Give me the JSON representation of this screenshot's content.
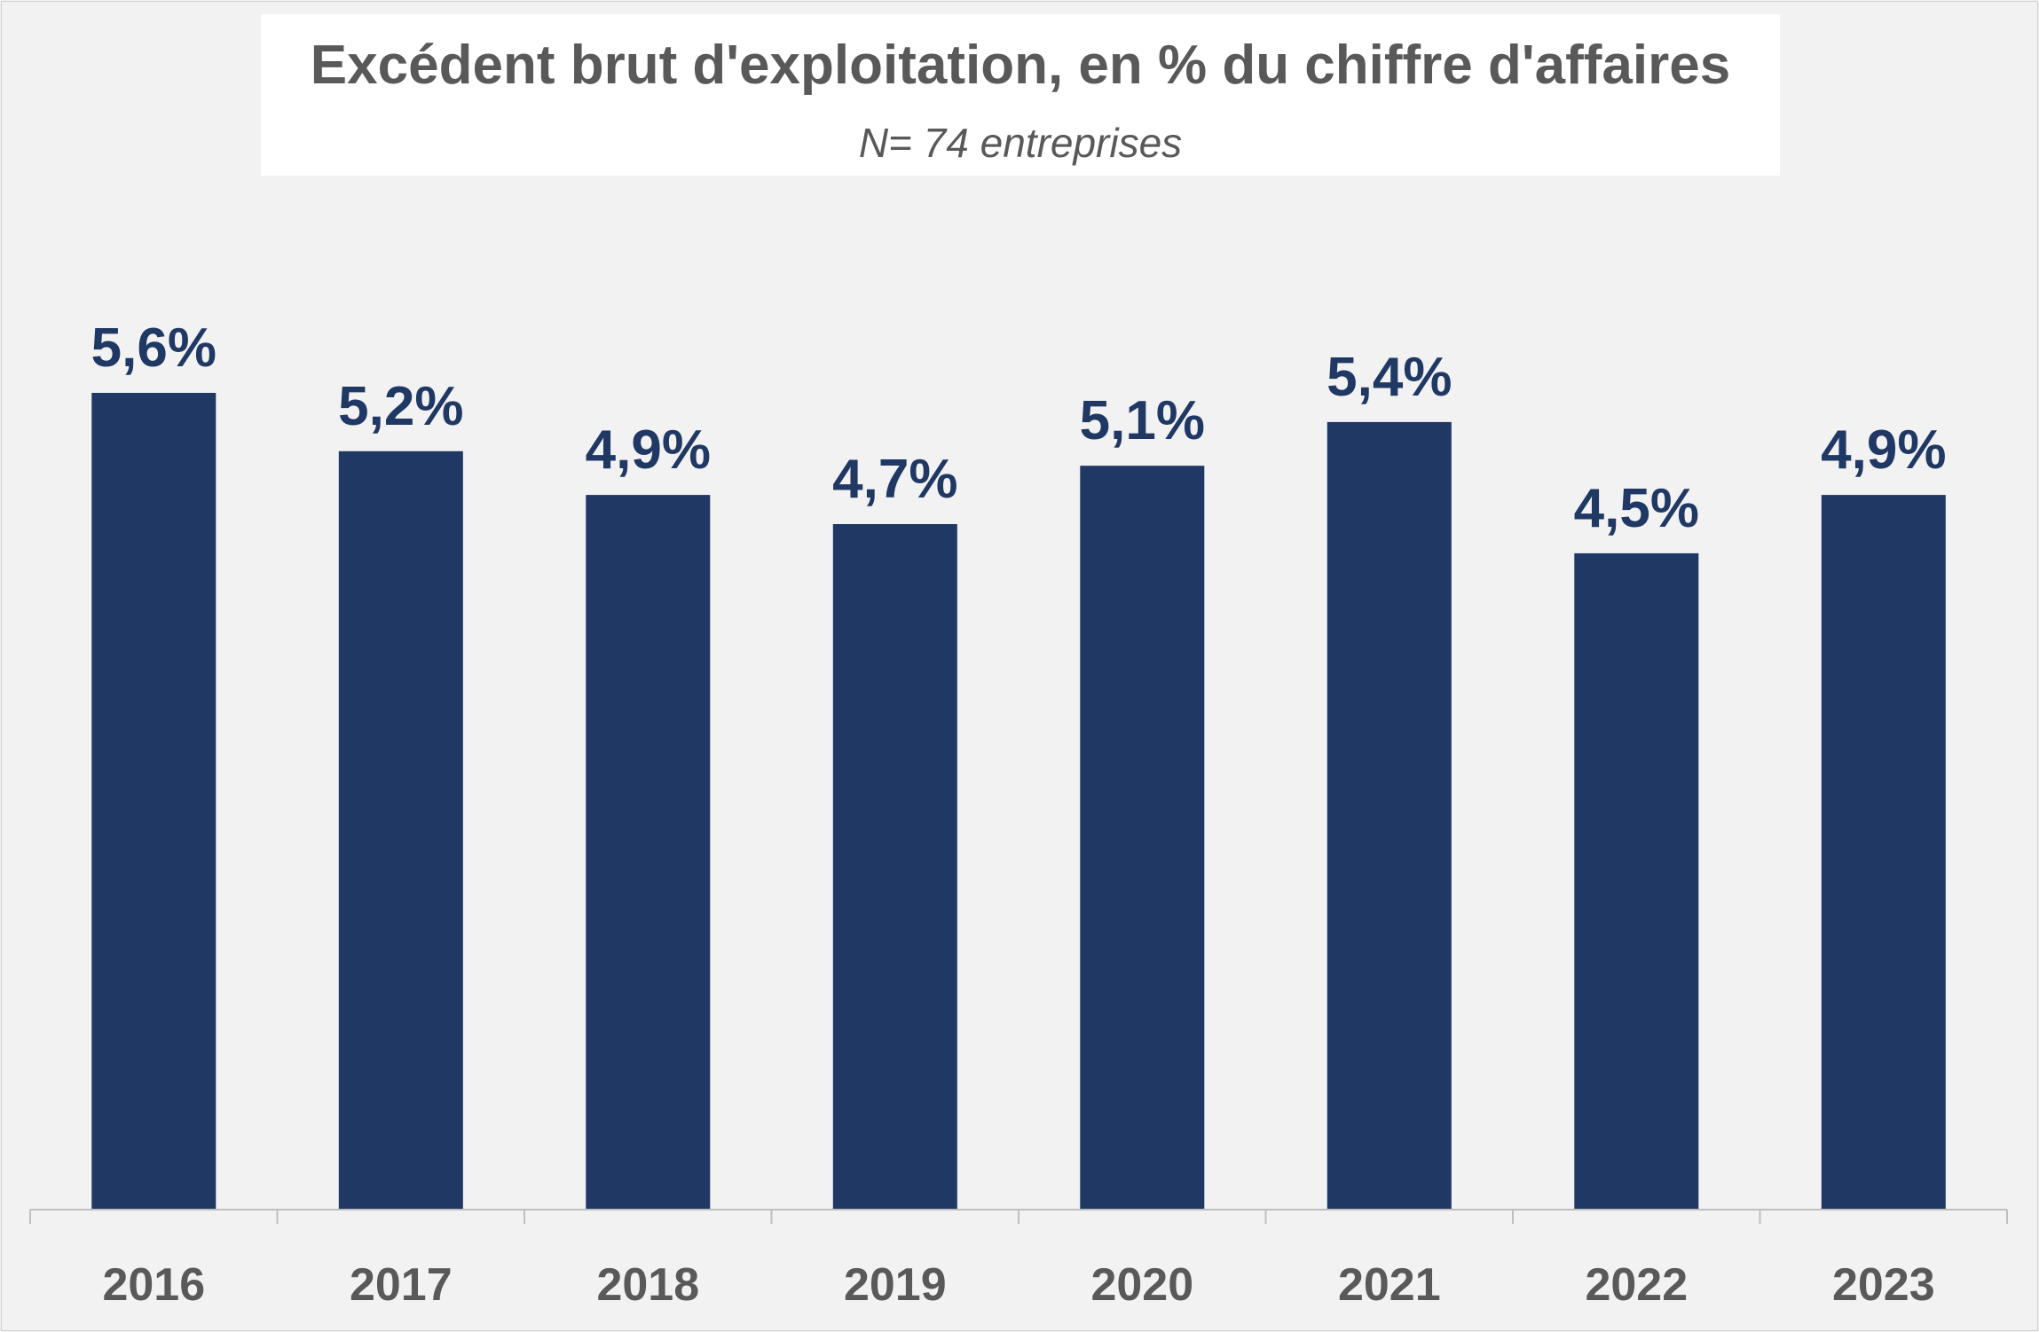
{
  "chart_data": {
    "type": "bar",
    "title": "Excédent brut d'exploitation, en % du chiffre d'affaires",
    "subtitle": "N= 74 entreprises",
    "categories": [
      "2016",
      "2017",
      "2018",
      "2019",
      "2020",
      "2021",
      "2022",
      "2023"
    ],
    "values": [
      5.6,
      5.2,
      4.9,
      4.7,
      5.1,
      5.4,
      4.5,
      4.9
    ],
    "value_labels": [
      "5,6%",
      "5,2%",
      "4,9%",
      "4,7%",
      "5,1%",
      "5,4%",
      "4,5%",
      "4,9%"
    ],
    "unit": "%",
    "ylim": [
      0,
      5.6
    ],
    "grid": false,
    "legend": "none",
    "colors": {
      "bar": "#203864",
      "text": "#595959",
      "title_box": "#ffffff",
      "background": "#f2f2f2"
    }
  }
}
